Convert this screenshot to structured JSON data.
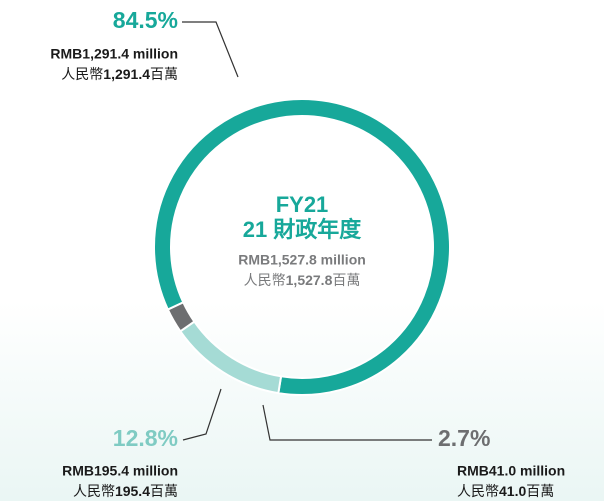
{
  "chart_data": {
    "type": "donut",
    "title": "FY21",
    "subtitle": "21 財政年度",
    "total_label": "RMB1,527.8 million",
    "total_label_zh": "人民幣1,527.8百萬",
    "values": [
      84.5,
      12.8,
      2.7
    ],
    "value_labels": [
      "84.5%",
      "12.8%",
      "2.7%"
    ],
    "amounts": [
      "RMB1,291.4 million",
      "RMB195.4 million",
      "RMB41.0 million"
    ],
    "amounts_zh": [
      "人民幣1,291.4百萬",
      "人民幣195.4百萬",
      "人民幣41.0百萬"
    ],
    "colors": [
      "#17a89a",
      "#a5dbd5",
      "#6d6e70"
    ]
  }
}
